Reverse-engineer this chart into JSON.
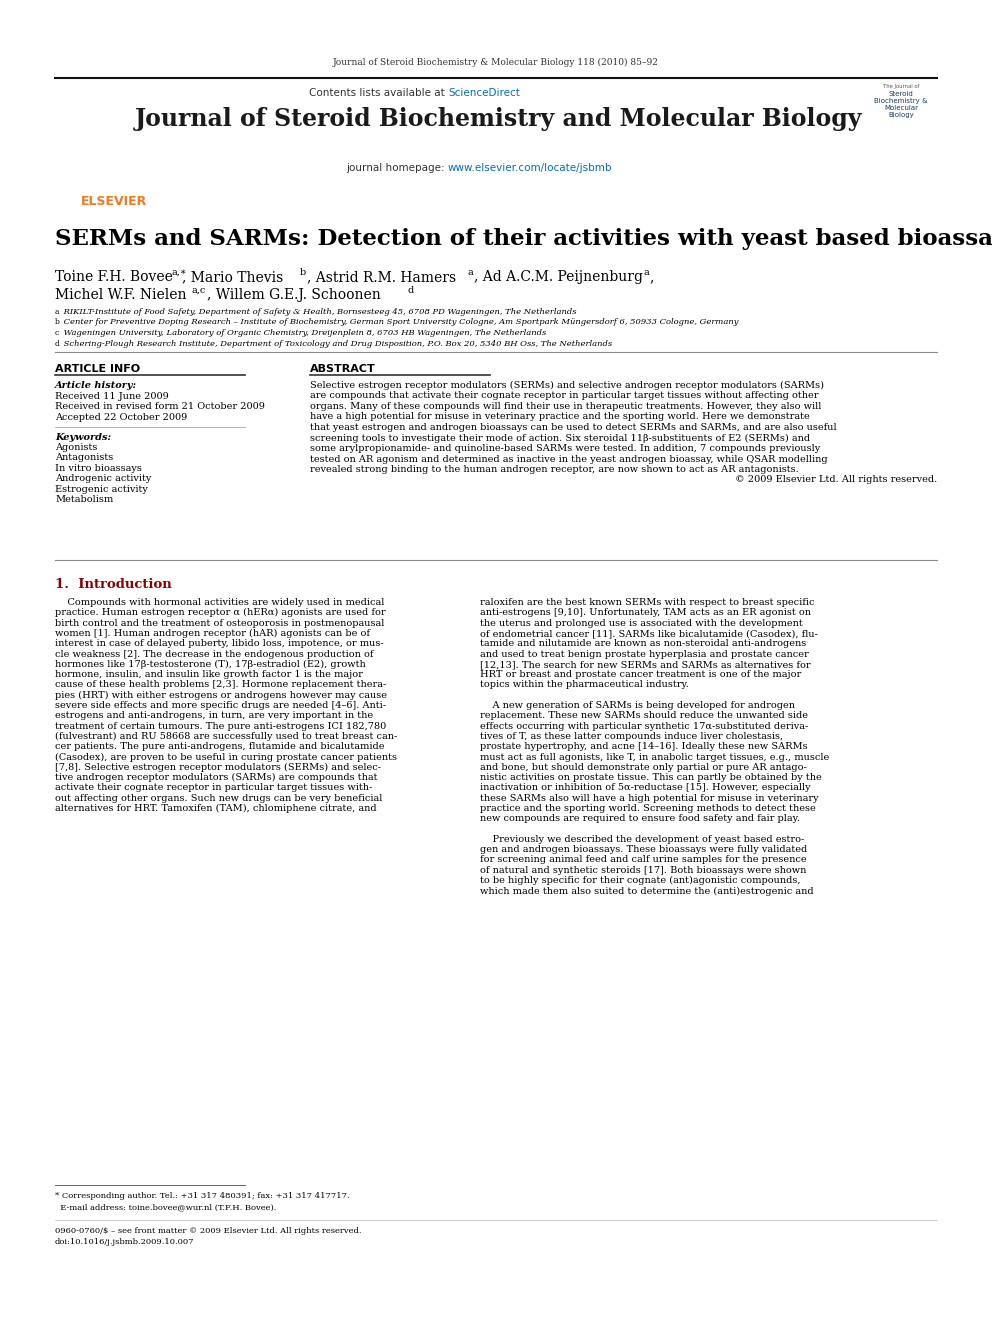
{
  "page_title_line": "Journal of Steroid Biochemistry & Molecular Biology 118 (2010) 85–92",
  "journal_name": "Journal of Steroid Biochemistry and Molecular Biology",
  "contents_line_pre": "Contents lists available at ",
  "contents_line_link": "ScienceDirect",
  "journal_homepage_pre": "journal homepage: ",
  "journal_homepage_link": "www.elsevier.com/locate/jsbmb",
  "article_title": "SERMs and SARMs: Detection of their activities with yeast based bioassays",
  "author_line1": "Toine F.H. Bovee",
  "author_line1_sup": "a,∗",
  "author_line1_rest": ", Mario Thevis",
  "author_line1_sup2": "b",
  "author_line1_rest2": ", Astrid R.M. Hamers",
  "author_line1_sup3": "a",
  "author_line1_rest3": ", Ad A.C.M. Peijnenburg",
  "author_line1_sup4": "a",
  "author_line1_end": ",",
  "author_line2": "Michel W.F. Nielen",
  "author_line2_sup": "a,c",
  "author_line2_rest": ", Willem G.E.J. Schoonen",
  "author_line2_sup2": "d",
  "affiliations": [
    "a RIKILT-Institute of Food Safety, Department of Safety & Health, Bornsesteeg 45, 6708 PD Wageningen, The Netherlands",
    "b Center for Preventive Doping Research – Institute of Biochemistry, German Sport University Cologne, Am Sportpark Müngersdorf 6, 50933 Cologne, Germany",
    "c Wageningen University, Laboratory of Organic Chemistry, Dreijenplein 8, 6703 HB Wageningen, The Netherlands",
    "d Schering-Plough Research Institute, Department of Toxicology and Drug Disposition, P.O. Box 20, 5340 BH Oss, The Netherlands"
  ],
  "article_info_label": "ARTICLE INFO",
  "abstract_label": "ABSTRACT",
  "article_history_label": "Article history:",
  "article_history": [
    "Received 11 June 2009",
    "Received in revised form 21 October 2009",
    "Accepted 22 October 2009"
  ],
  "keywords_label": "Keywords:",
  "keywords": [
    "Agonists",
    "Antagonists",
    "In vitro bioassays",
    "Androgenic activity",
    "Estrogenic activity",
    "Metabolism"
  ],
  "abstract_lines": [
    "Selective estrogen receptor modulators (SERMs) and selective androgen receptor modulators (SARMs)",
    "are compounds that activate their cognate receptor in particular target tissues without affecting other",
    "organs. Many of these compounds will find their use in therapeutic treatments. However, they also will",
    "have a high potential for misuse in veterinary practice and the sporting world. Here we demonstrate",
    "that yeast estrogen and androgen bioassays can be used to detect SERMs and SARMs, and are also useful",
    "screening tools to investigate their mode of action. Six steroidal 11β-substituents of E2 (SERMs) and",
    "some arylpropionamide- and quinoline-based SARMs were tested. In addition, 7 compounds previously",
    "tested on AR agonism and determined as inactive in the yeast androgen bioassay, while QSAR modelling",
    "revealed strong binding to the human androgen receptor, are now shown to act as AR antagonists."
  ],
  "abstract_copyright": "© 2009 Elsevier Ltd. All rights reserved.",
  "intro_heading": "1.  Introduction",
  "intro_left_lines": [
    "    Compounds with hormonal activities are widely used in medical",
    "practice. Human estrogen receptor α (hERα) agonists are used for",
    "birth control and the treatment of osteoporosis in postmenopausal",
    "women [1]. Human androgen receptor (hAR) agonists can be of",
    "interest in case of delayed puberty, libido loss, impotence, or mus-",
    "cle weakness [2]. The decrease in the endogenous production of",
    "hormones like 17β-testosterone (T), 17β-estradiol (E2), growth",
    "hormone, insulin, and insulin like growth factor 1 is the major",
    "cause of these health problems [2,3]. Hormone replacement thera-",
    "pies (HRT) with either estrogens or androgens however may cause",
    "severe side effects and more specific drugs are needed [4–6]. Anti-",
    "estrogens and anti-androgens, in turn, are very important in the",
    "treatment of certain tumours. The pure anti-estrogens ICI 182,780",
    "(fulvestrant) and RU 58668 are successfully used to treat breast can-",
    "cer patients. The pure anti-androgens, flutamide and bicalutamide",
    "(Casodex), are proven to be useful in curing prostate cancer patients",
    "[7,8]. Selective estrogen receptor modulators (SERMs) and selec-",
    "tive androgen receptor modulators (SARMs) are compounds that",
    "activate their cognate receptor in particular target tissues with-",
    "out affecting other organs. Such new drugs can be very beneficial",
    "alternatives for HRT. Tamoxifen (TAM), chlomiphene citrate, and"
  ],
  "intro_right_lines": [
    "raloxifen are the best known SERMs with respect to breast specific",
    "anti-estrogens [9,10]. Unfortunately, TAM acts as an ER agonist on",
    "the uterus and prolonged use is associated with the development",
    "of endometrial cancer [11]. SARMs like bicalutamide (Casodex), flu-",
    "tamide and nilutamide are known as non-steroidal anti-androgens",
    "and used to treat benign prostate hyperplasia and prostate cancer",
    "[12,13]. The search for new SERMs and SARMs as alternatives for",
    "HRT or breast and prostate cancer treatment is one of the major",
    "topics within the pharmaceutical industry.",
    "",
    "    A new generation of SARMs is being developed for androgen",
    "replacement. These new SARMs should reduce the unwanted side",
    "effects occurring with particular synthetic 17α-substituted deriva-",
    "tives of T, as these latter compounds induce liver cholestasis,",
    "prostate hypertrophy, and acne [14–16]. Ideally these new SARMs",
    "must act as full agonists, like T, in anabolic target tissues, e.g., muscle",
    "and bone, but should demonstrate only partial or pure AR antago-",
    "nistic activities on prostate tissue. This can partly be obtained by the",
    "inactivation or inhibition of 5α-reductase [15]. However, especially",
    "these SARMs also will have a high potential for misuse in veterinary",
    "practice and the sporting world. Screening methods to detect these",
    "new compounds are required to ensure food safety and fair play.",
    "",
    "    Previously we described the development of yeast based estro-",
    "gen and androgen bioassays. These bioassays were fully validated",
    "for screening animal feed and calf urine samples for the presence",
    "of natural and synthetic steroids [17]. Both bioassays were shown",
    "to be highly specific for their cognate (ant)agonistic compounds,",
    "which made them also suited to determine the (anti)estrogenic and"
  ],
  "footer_star_line": "* Corresponding author. Tel.: +31 317 480391; fax: +31 317 417717.",
  "footer_email_line": "  E-mail address: toine.bovee@wur.nl (T.F.H. Bovee).",
  "footer_copy_line": "0960-0760/$ – see front matter © 2009 Elsevier Ltd. All rights reserved.",
  "footer_doi_line": "doi:10.1016/j.jsbmb.2009.10.007",
  "bg_color": "#ffffff",
  "header_bg": "#e4e4e4",
  "dark_bar_color": "#1a1a1a",
  "elsevier_orange": "#f47920",
  "sciencedirect_blue": "#0070c0",
  "link_color": "#0070c0",
  "text_color": "#000000",
  "intro_header_color": "#8b0000",
  "dpi": 100,
  "fig_w": 9.92,
  "fig_h": 13.23
}
